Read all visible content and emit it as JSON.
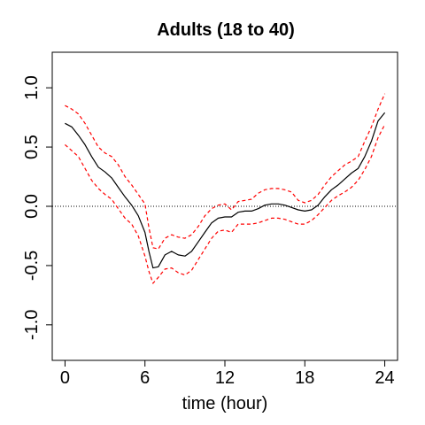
{
  "chart_data": {
    "type": "line",
    "title": "Adults (18 to 40)",
    "xlabel": "time (hour)",
    "ylabel": "",
    "xlim": [
      -0.96,
      24.96
    ],
    "ylim": [
      -1.3,
      1.3
    ],
    "x_ticks": [
      0,
      6,
      12,
      18,
      24
    ],
    "x_tick_labels": [
      "0",
      "6",
      "12",
      "18",
      "24"
    ],
    "y_ticks": [
      -1.0,
      -0.5,
      0.0,
      0.5,
      1.0
    ],
    "y_tick_labels": [
      "-1.0",
      "-0.5",
      "0.0",
      "0.5",
      "1.0"
    ],
    "reference_line": {
      "y": 0,
      "style": "dotted",
      "color": "#000000"
    },
    "grid": false,
    "series": [
      {
        "role": "estimate",
        "color": "#000000",
        "style": "solid",
        "x": [
          0,
          0.5,
          1,
          1.5,
          2,
          2.5,
          3,
          3.5,
          4,
          4.5,
          5,
          5.5,
          6,
          6.3,
          6.6,
          7,
          7.5,
          8,
          8.5,
          9,
          9.5,
          10,
          10.5,
          11,
          11.5,
          12,
          12.5,
          13,
          13.5,
          14,
          14.5,
          15,
          15.5,
          16,
          16.5,
          17,
          17.5,
          18,
          18.5,
          19,
          19.5,
          20,
          20.5,
          21,
          21.5,
          22,
          22.5,
          23,
          23.5,
          24
        ],
        "y": [
          0.7,
          0.67,
          0.6,
          0.52,
          0.42,
          0.33,
          0.29,
          0.24,
          0.16,
          0.08,
          0.01,
          -0.08,
          -0.22,
          -0.38,
          -0.52,
          -0.51,
          -0.41,
          -0.38,
          -0.41,
          -0.42,
          -0.38,
          -0.3,
          -0.22,
          -0.14,
          -0.1,
          -0.09,
          -0.09,
          -0.05,
          -0.04,
          -0.04,
          -0.02,
          0.01,
          0.02,
          0.02,
          0.01,
          -0.01,
          -0.03,
          -0.04,
          -0.03,
          0.01,
          0.08,
          0.14,
          0.18,
          0.23,
          0.28,
          0.32,
          0.42,
          0.55,
          0.72,
          0.79
        ]
      },
      {
        "role": "upper-band",
        "color": "#ff0000",
        "style": "dashed",
        "x": [
          0,
          0.5,
          1,
          1.5,
          2,
          2.5,
          3,
          3.5,
          4,
          4.5,
          5,
          5.5,
          6,
          6.3,
          6.6,
          7,
          7.5,
          8,
          8.5,
          9,
          9.5,
          10,
          10.5,
          11,
          11.5,
          12,
          12.5,
          13,
          13.5,
          14,
          14.5,
          15,
          15.5,
          16,
          16.5,
          17,
          17.5,
          18,
          18.5,
          19,
          19.5,
          20,
          20.5,
          21,
          21.5,
          22,
          22.5,
          23,
          23.5,
          24
        ],
        "y": [
          0.85,
          0.82,
          0.78,
          0.7,
          0.6,
          0.5,
          0.45,
          0.42,
          0.35,
          0.25,
          0.18,
          0.1,
          0.02,
          -0.18,
          -0.35,
          -0.36,
          -0.27,
          -0.24,
          -0.26,
          -0.27,
          -0.24,
          -0.17,
          -0.08,
          -0.02,
          0.01,
          0.02,
          -0.03,
          0.04,
          0.05,
          0.06,
          0.11,
          0.14,
          0.15,
          0.15,
          0.14,
          0.12,
          0.05,
          0.03,
          0.05,
          0.1,
          0.18,
          0.25,
          0.3,
          0.35,
          0.38,
          0.42,
          0.55,
          0.67,
          0.82,
          0.95
        ]
      },
      {
        "role": "lower-band",
        "color": "#ff0000",
        "style": "dashed",
        "x": [
          0,
          0.5,
          1,
          1.5,
          2,
          2.5,
          3,
          3.5,
          4,
          4.5,
          5,
          5.5,
          6,
          6.3,
          6.6,
          7,
          7.5,
          8,
          8.5,
          9,
          9.5,
          10,
          10.5,
          11,
          11.5,
          12,
          12.5,
          13,
          13.5,
          14,
          14.5,
          15,
          15.5,
          16,
          16.5,
          17,
          17.5,
          18,
          18.5,
          19,
          19.5,
          20,
          20.5,
          21,
          21.5,
          22,
          22.5,
          23,
          23.5,
          24
        ],
        "y": [
          0.52,
          0.47,
          0.42,
          0.32,
          0.22,
          0.15,
          0.1,
          0.06,
          -0.02,
          -0.1,
          -0.15,
          -0.25,
          -0.42,
          -0.55,
          -0.65,
          -0.6,
          -0.53,
          -0.52,
          -0.56,
          -0.58,
          -0.54,
          -0.45,
          -0.36,
          -0.27,
          -0.21,
          -0.2,
          -0.22,
          -0.15,
          -0.15,
          -0.15,
          -0.14,
          -0.12,
          -0.1,
          -0.1,
          -0.11,
          -0.13,
          -0.15,
          -0.15,
          -0.12,
          -0.07,
          -0.01,
          0.05,
          0.09,
          0.12,
          0.16,
          0.22,
          0.31,
          0.42,
          0.58,
          0.69
        ]
      }
    ]
  }
}
